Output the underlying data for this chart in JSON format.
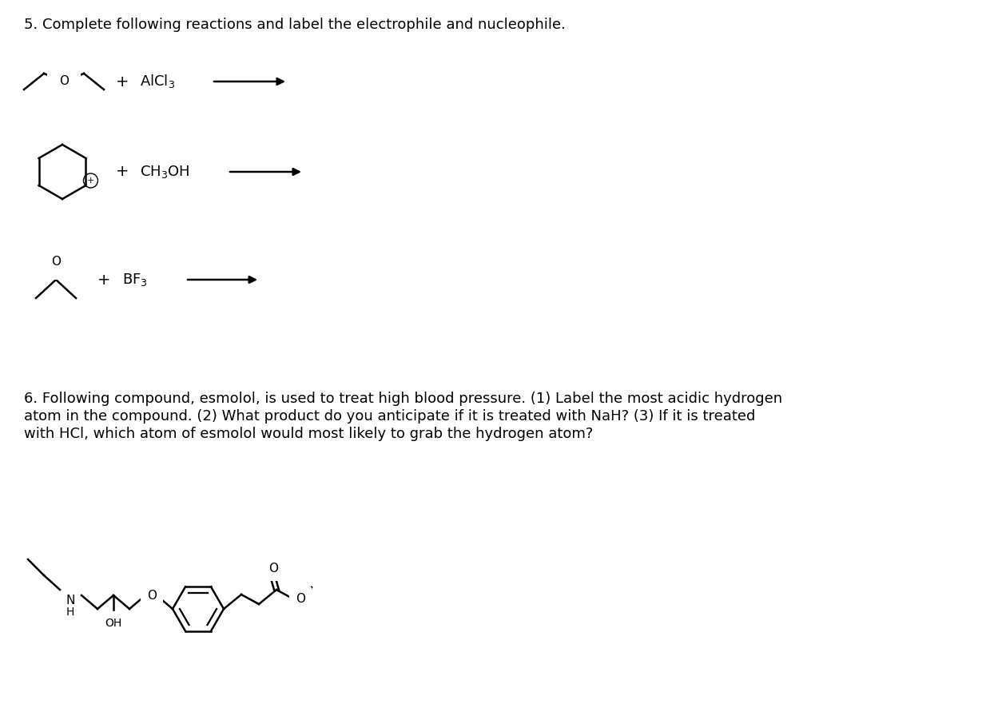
{
  "title5": "5. Complete following reactions and label the electrophile and nucleophile.",
  "title6_line1": "6. Following compound, esmolol, is used to treat high blood pressure. (1) Label the most acidic hydrogen",
  "title6_line2": "atom in the compound. (2) What product do you anticipate if it is treated with NaH? (3) If it is treated",
  "title6_line3": "with HCl, which atom of esmolol would most likely to grab the hydrogen atom?",
  "bg_color": "#ffffff",
  "text_color": "#000000",
  "font_size_title": 13,
  "font_size_chem": 13,
  "line_color": "#000000",
  "line_width": 1.8,
  "arrow_color": "#000000"
}
